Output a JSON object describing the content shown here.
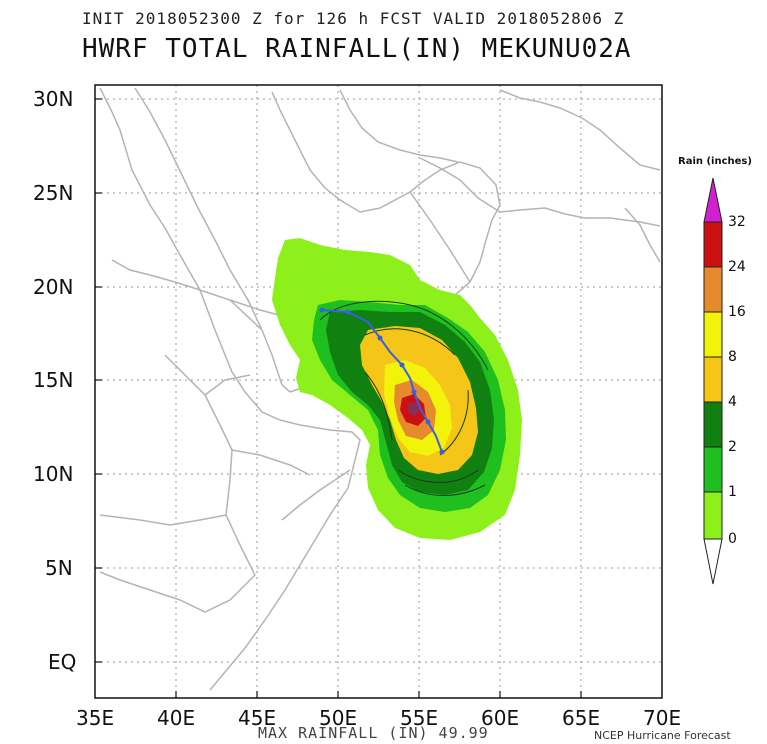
{
  "header": {
    "init_line": "INIT 2018052300 Z for 126 h FCST VALID 2018052806 Z",
    "title": "HWRF TOTAL RAINFALL(IN) MEKUNU02A"
  },
  "map": {
    "lat_labels": [
      "30N",
      "25N",
      "20N",
      "15N",
      "10N",
      "5N",
      "EQ"
    ],
    "lon_labels": [
      "35E",
      "40E",
      "45E",
      "50E",
      "55E",
      "60E",
      "65E",
      "70E"
    ],
    "grid": true,
    "colors": {
      "land_border": "#b4b4b4",
      "grid": "#9a9a9a",
      "storm_track": "#3a5fe0"
    }
  },
  "footer": {
    "max_rainfall": "MAX RAINFALL (IN) 49.99",
    "credit": "NCEP Hurricane Forecast"
  },
  "legend": {
    "title": "Rain (inches)",
    "levels": [
      "32",
      "24",
      "16",
      "8",
      "4",
      "2",
      "1",
      "0"
    ],
    "colors": {
      "over": "#d020d0",
      "l24_32": "#cc1010",
      "l16_24": "#e68a2e",
      "l8_16": "#f2f20a",
      "l4_8": "#f5c518",
      "l2_4": "#108010",
      "l1_2": "#1fbf1f",
      "l0_1": "#8ef01a"
    }
  }
}
